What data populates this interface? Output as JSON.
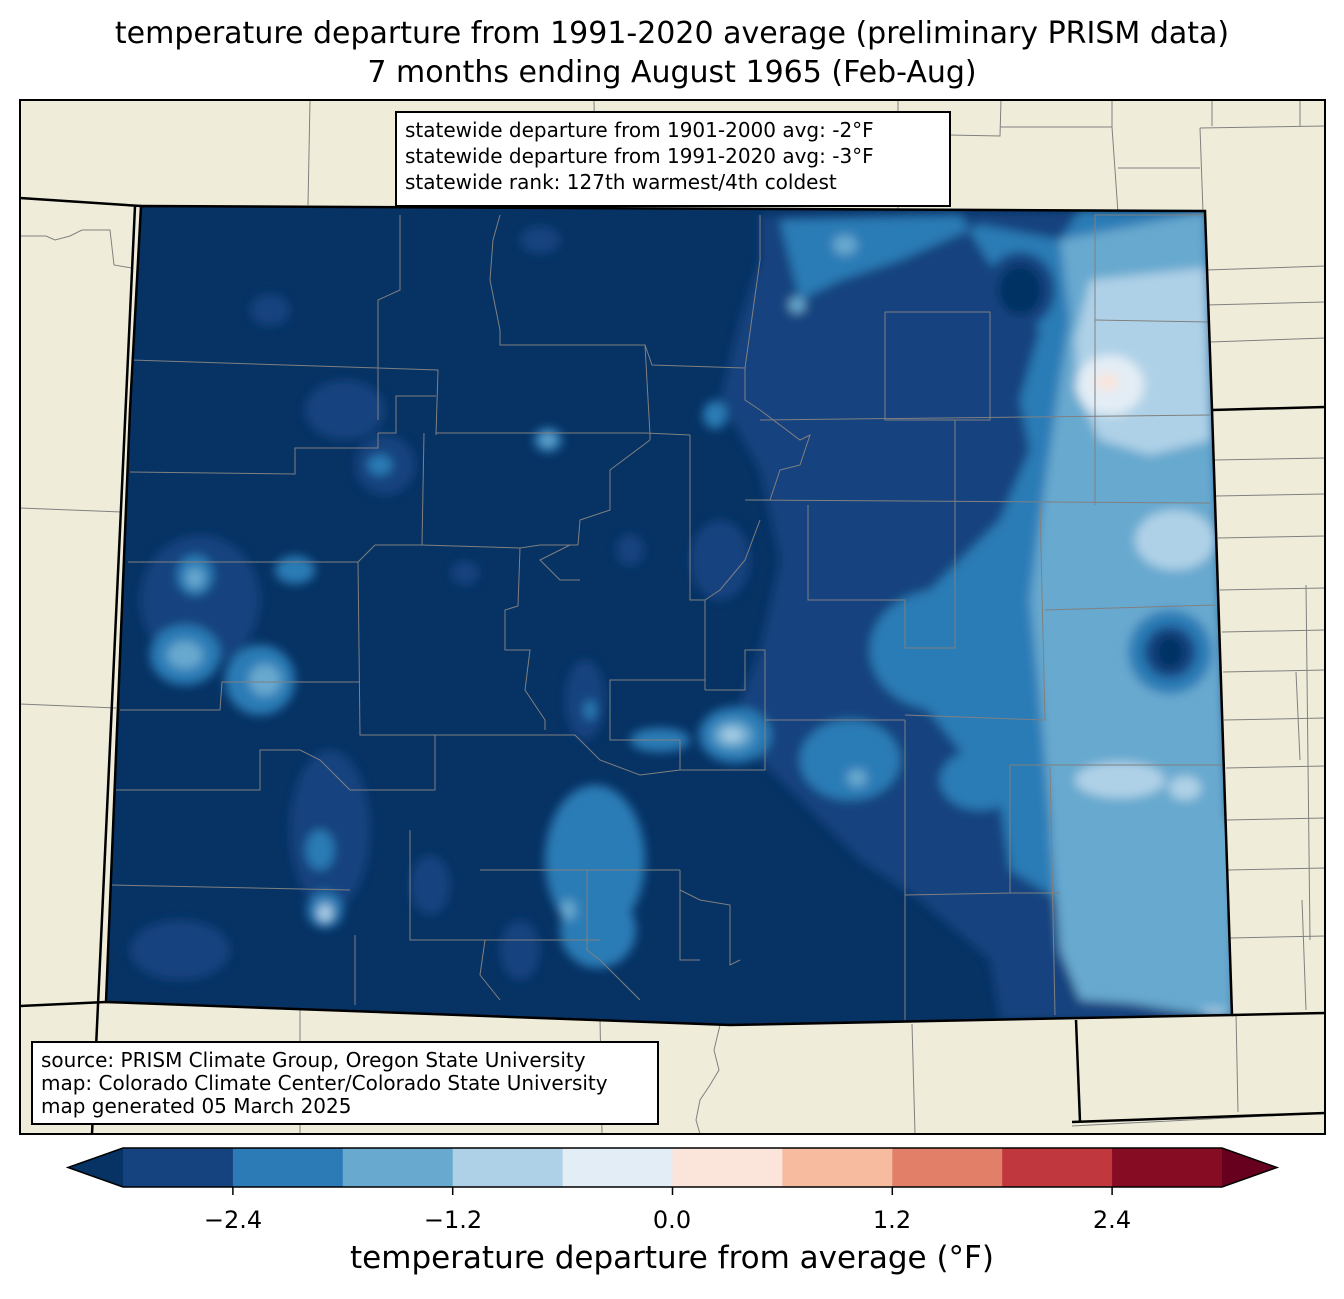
{
  "title_line1": "temperature departure from 1991-2020 average (preliminary PRISM data)",
  "title_line2": "7 months ending August 1965 (Feb-Aug)",
  "stats": [
    "statewide departure from 1901-2000 avg: -2°F",
    "statewide departure from 1991-2020 avg: -3°F",
    "statewide rank: 127th warmest/4th coldest"
  ],
  "source": [
    "source: PRISM Climate Group, Oregon State University",
    "map: Colorado Climate Center/Colorado State University",
    "map generated 05 March 2025"
  ],
  "colorbar": {
    "label": "temperature departure from average (°F)",
    "ticks": [
      "−2.4",
      "−1.2",
      "0.0",
      "1.2",
      "2.4"
    ],
    "tick_values": [
      -2.4,
      -1.2,
      0.0,
      1.2,
      2.4
    ],
    "range": [
      -3.0,
      3.0
    ],
    "step": 0.6,
    "colors": [
      "#063264",
      "#14437f",
      "#2c7bb6",
      "#67a9cf",
      "#afd1e7",
      "#e3edf5",
      "#fbe4d9",
      "#f7bba0",
      "#e17f68",
      "#c0373d",
      "#850c22",
      "#67001f"
    ],
    "under_color": "#063264",
    "over_color": "#67001f"
  },
  "map_colors": {
    "background": "#efedda",
    "boundary": "#000000",
    "county_lines": "#808080"
  }
}
